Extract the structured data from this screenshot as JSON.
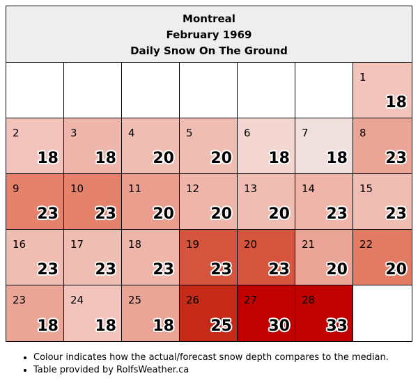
{
  "header": {
    "city": "Montreal",
    "month": "February 1969",
    "subtitle": "Daily Snow On The Ground"
  },
  "calendar": {
    "first_weekday_index": 6,
    "days": [
      {
        "day": "1",
        "value": "18",
        "color": "#f2c4bc"
      },
      {
        "day": "2",
        "value": "18",
        "color": "#f2c4bc"
      },
      {
        "day": "3",
        "value": "18",
        "color": "#efb7ab"
      },
      {
        "day": "4",
        "value": "20",
        "color": "#f0bdb2"
      },
      {
        "day": "5",
        "value": "20",
        "color": "#f0bdb2"
      },
      {
        "day": "6",
        "value": "18",
        "color": "#f3d6d0"
      },
      {
        "day": "7",
        "value": "18",
        "color": "#f0e0de"
      },
      {
        "day": "8",
        "value": "23",
        "color": "#eba596"
      },
      {
        "day": "9",
        "value": "23",
        "color": "#e4826c"
      },
      {
        "day": "10",
        "value": "23",
        "color": "#e4826c"
      },
      {
        "day": "11",
        "value": "20",
        "color": "#ec9e8e"
      },
      {
        "day": "12",
        "value": "20",
        "color": "#efb5a9"
      },
      {
        "day": "13",
        "value": "20",
        "color": "#f0bdb2"
      },
      {
        "day": "14",
        "value": "23",
        "color": "#efb5a9"
      },
      {
        "day": "15",
        "value": "23",
        "color": "#f0bdb2"
      },
      {
        "day": "16",
        "value": "23",
        "color": "#f0bdb2"
      },
      {
        "day": "17",
        "value": "23",
        "color": "#f0bdb2"
      },
      {
        "day": "18",
        "value": "23",
        "color": "#efb5a9"
      },
      {
        "day": "19",
        "value": "23",
        "color": "#d5543d"
      },
      {
        "day": "20",
        "value": "23",
        "color": "#d5543d"
      },
      {
        "day": "21",
        "value": "20",
        "color": "#eba596"
      },
      {
        "day": "22",
        "value": "20",
        "color": "#e27a64"
      },
      {
        "day": "23",
        "value": "18",
        "color": "#eba596"
      },
      {
        "day": "24",
        "value": "18",
        "color": "#f2c4bc"
      },
      {
        "day": "25",
        "value": "18",
        "color": "#eba596"
      },
      {
        "day": "26",
        "value": "25",
        "color": "#c42a17"
      },
      {
        "day": "27",
        "value": "30",
        "color": "#c10000"
      },
      {
        "day": "28",
        "value": "33",
        "color": "#c10000"
      }
    ]
  },
  "notes": [
    "Colour indicates how the actual/forecast snow depth compares to the median.",
    "Table provided by RolfsWeather.ca"
  ]
}
